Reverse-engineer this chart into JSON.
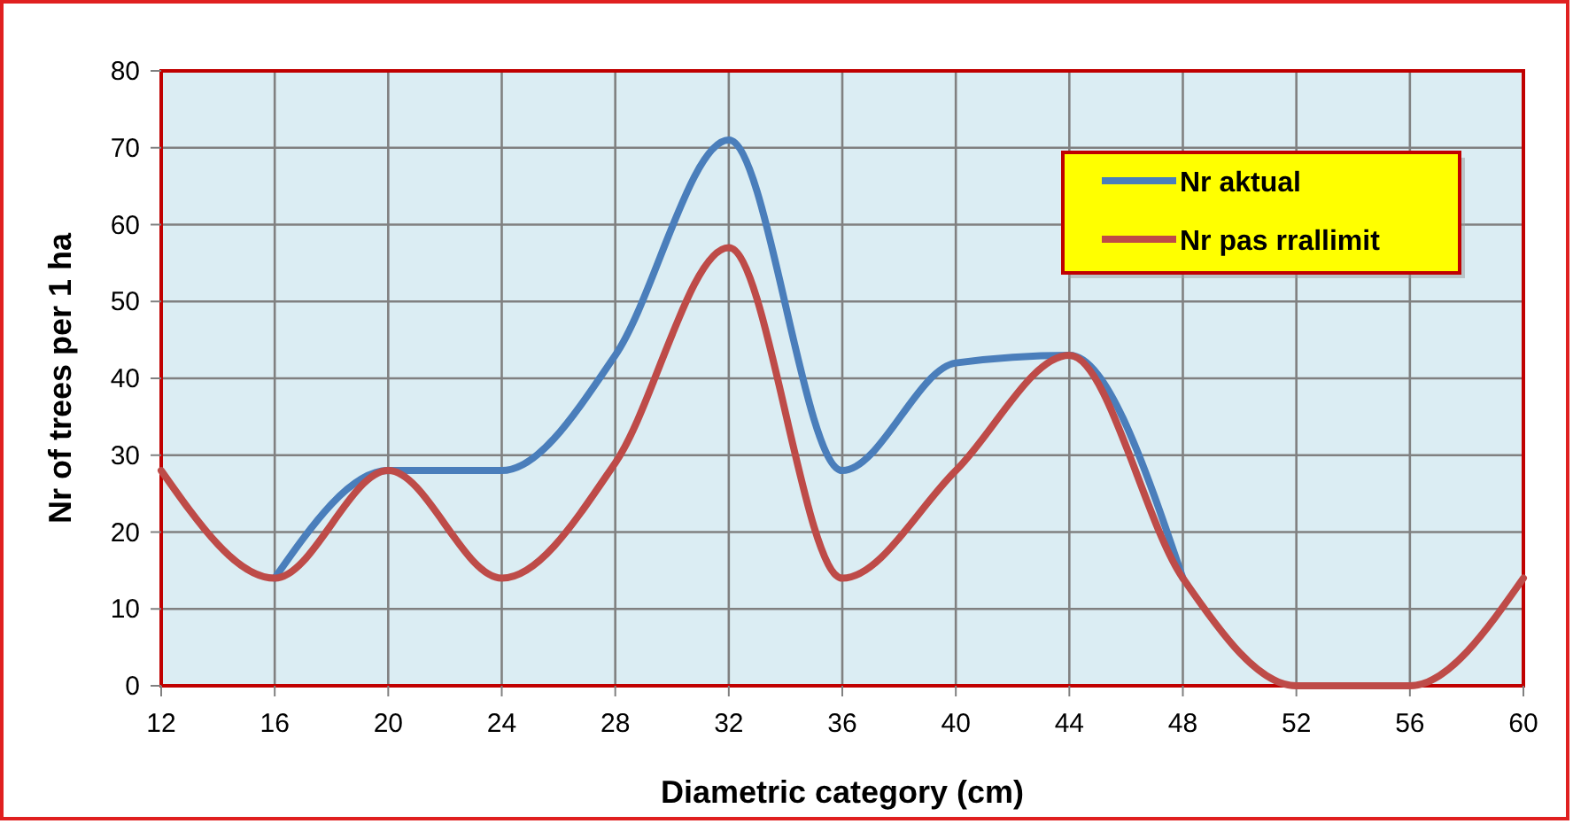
{
  "chart_data": {
    "type": "line",
    "xlabel": "Diametric category   (cm)",
    "ylabel": "Nr of trees  per  1 ha",
    "x": [
      12,
      16,
      20,
      24,
      28,
      32,
      36,
      40,
      44,
      48,
      52,
      56,
      60
    ],
    "series": [
      {
        "name": "Nr aktual",
        "color": "#4a7ebb",
        "values": [
          null,
          14,
          28,
          28,
          43,
          71,
          28,
          42,
          43,
          14,
          null,
          null,
          null
        ]
      },
      {
        "name": "Nr pas rrallimit",
        "color": "#be4b48",
        "values": [
          28,
          14,
          28,
          14,
          29,
          57,
          14,
          28,
          43,
          14,
          0,
          0,
          14
        ]
      }
    ],
    "xlim": [
      12,
      60
    ],
    "xticks": [
      12,
      16,
      20,
      24,
      28,
      32,
      36,
      40,
      44,
      48,
      52,
      56,
      60
    ],
    "ylim": [
      0,
      80
    ],
    "yticks": [
      0,
      10,
      20,
      30,
      40,
      50,
      60,
      70,
      80
    ],
    "grid": true,
    "legend": "top right",
    "marker": "none",
    "line_style": "solid"
  }
}
